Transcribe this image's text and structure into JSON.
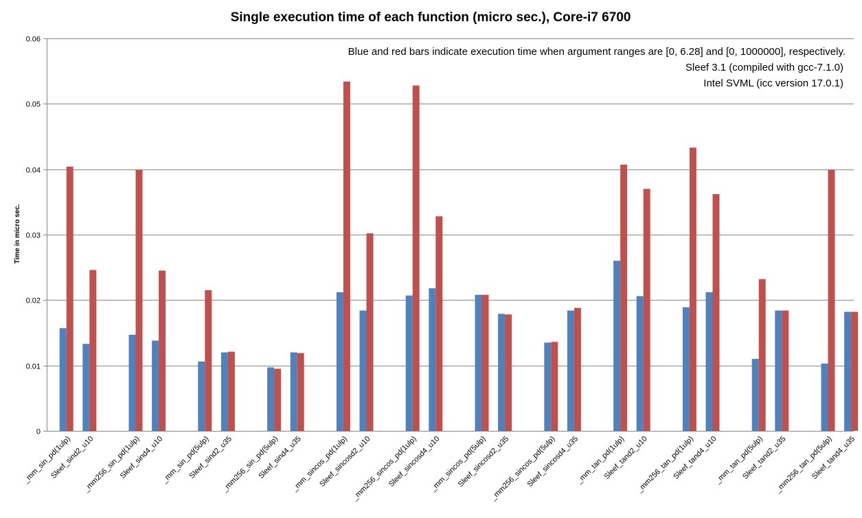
{
  "chart_data": {
    "type": "bar",
    "title": "Single execution time of each function (micro sec.), Core-i7 6700",
    "ylabel": "Time in micro sec.",
    "xlabel": "",
    "ylim": [
      0,
      0.06
    ],
    "yticks": [
      "0",
      "0.01",
      "0.02",
      "0.03",
      "0.04",
      "0.05",
      "0.06"
    ],
    "grid": true,
    "annotations": [
      "Blue and red bars indicate execution time when argument ranges are [0, 6.28] and [0, 1000000], respectively.",
      "Sleef 3.1 (compiled with gcc-7.1.0)",
      "Intel SVML  (icc version 17.0.1)"
    ],
    "groups": [
      {
        "categories": [
          "_mm_sin_pd(1ulp)",
          "Sleef_sind2_u10"
        ],
        "blue": [
          0.0157,
          0.0133
        ],
        "red": [
          0.0404,
          0.0246
        ]
      },
      {
        "categories": [
          "_mm256_sin_pd(1ulp)",
          "Sleef_sind4_u10"
        ],
        "blue": [
          0.0147,
          0.0138
        ],
        "red": [
          0.0399,
          0.0245
        ]
      },
      {
        "categories": [
          "_mm_sin_pd(5ulp)",
          "Sleef_sind2_u35"
        ],
        "blue": [
          0.0106,
          0.012
        ],
        "red": [
          0.0215,
          0.0121
        ]
      },
      {
        "categories": [
          "_mm256_sin_pd(5ulp)",
          "Sleef_sind4_u35"
        ],
        "blue": [
          0.0097,
          0.012
        ],
        "red": [
          0.0095,
          0.0119
        ]
      },
      {
        "categories": [
          "_mm_sincos_pd(1ulp)",
          "Sleef_sincosd2_u10"
        ],
        "blue": [
          0.0212,
          0.0184
        ],
        "red": [
          0.0534,
          0.0302
        ]
      },
      {
        "categories": [
          "_mm256_sincos_pd(1ulp)",
          "Sleef_sincosd4_u10"
        ],
        "blue": [
          0.0207,
          0.0218
        ],
        "red": [
          0.0528,
          0.0328
        ]
      },
      {
        "categories": [
          "_mm_sincos_pd(5ulp)",
          "Sleef_sincosd2_u35"
        ],
        "blue": [
          0.0208,
          0.0179
        ],
        "red": [
          0.0208,
          0.0178
        ]
      },
      {
        "categories": [
          "_mm256_sincos_pd(5ulp)",
          "Sleef_sincosd4_u35"
        ],
        "blue": [
          0.0135,
          0.0184
        ],
        "red": [
          0.0136,
          0.0188
        ]
      },
      {
        "categories": [
          "_mm_tan_pd(1ulp)",
          "Sleef_tand2_u10"
        ],
        "blue": [
          0.026,
          0.0206
        ],
        "red": [
          0.0407,
          0.037
        ]
      },
      {
        "categories": [
          "_mm256_tan_pd(1ulp)",
          "Sleef_tand4_u10"
        ],
        "blue": [
          0.0189,
          0.0212
        ],
        "red": [
          0.0433,
          0.0362
        ]
      },
      {
        "categories": [
          "_mm_tan_pd(5ulp)",
          "Sleef_tand2_u35"
        ],
        "blue": [
          0.011,
          0.0184
        ],
        "red": [
          0.0232,
          0.0184
        ]
      },
      {
        "categories": [
          "_mm256_tan_pd(5ulp)",
          "Sleef_tand4_u35"
        ],
        "blue": [
          0.0103,
          0.0182
        ],
        "red": [
          0.0399,
          0.0182
        ]
      }
    ],
    "colors": {
      "blue": "#4f81bd",
      "red": "#c0504d",
      "grid": "#868686"
    }
  }
}
